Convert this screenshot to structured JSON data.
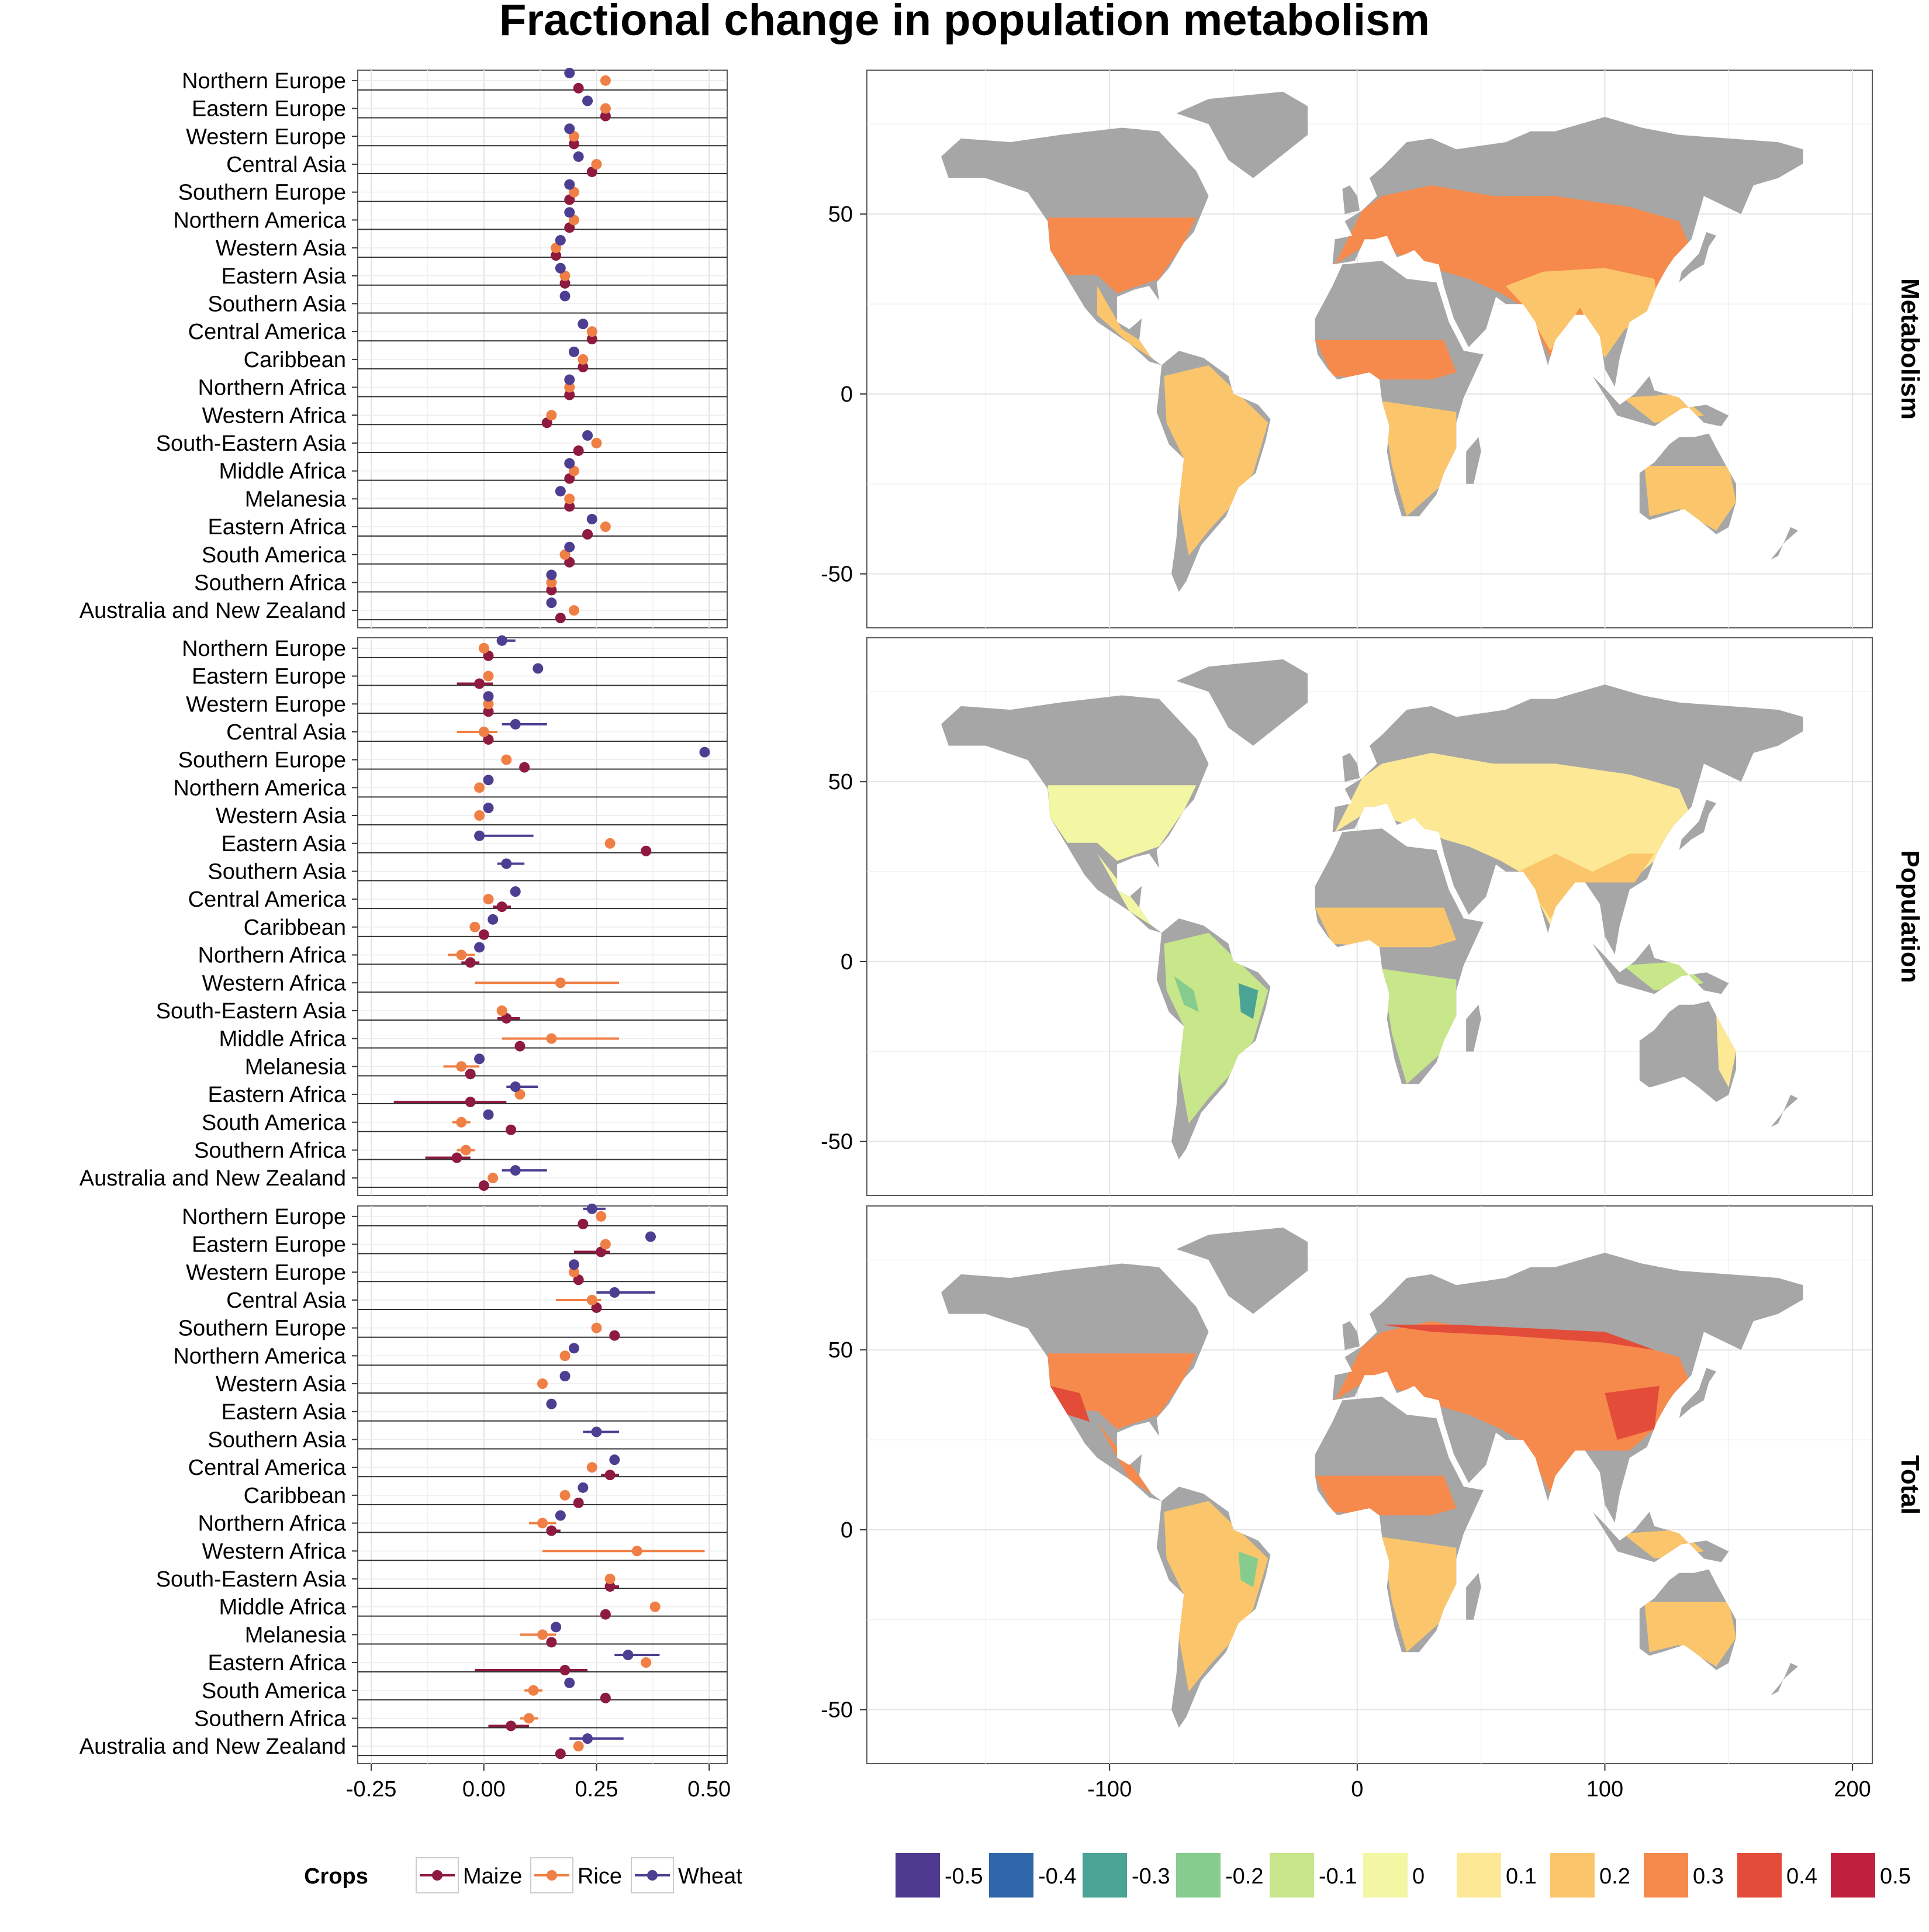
{
  "title": "Fractional change in population metabolism",
  "chart_data": [
    {
      "type": "scatter",
      "subtype": "dot-range",
      "facets": [
        "Metabolism",
        "Population",
        "Total"
      ],
      "regions": [
        "Northern Europe",
        "Eastern Europe",
        "Western Europe",
        "Central Asia",
        "Southern Europe",
        "Northern America",
        "Western Asia",
        "Eastern Asia",
        "Southern Asia",
        "Central America",
        "Caribbean",
        "Northern Africa",
        "Western Africa",
        "South-Eastern Asia",
        "Middle Africa",
        "Melanesia",
        "Eastern Africa",
        "South America",
        "Southern Africa",
        "Australia and New Zealand"
      ],
      "x_ticks": [
        "-0.25",
        "0.00",
        "0.25",
        "0.50"
      ],
      "x_tick_values": [
        -0.25,
        0,
        0.25,
        0.5
      ],
      "xlim": [
        -0.28,
        0.54
      ],
      "grid": true,
      "legend": {
        "title": "Crops",
        "position": "bottom",
        "entries": [
          "Maize",
          "Rice",
          "Wheat"
        ]
      },
      "series_colors": {
        "Maize": "#8e1a3f",
        "Rice": "#f07f45",
        "Wheat": "#4d3e92"
      },
      "note_values": "per facet and crop: one [point, low, high] per region, in region order; null = not shown",
      "metabolism": {
        "Maize": [
          [
            0.21,
            null,
            null
          ],
          [
            0.27,
            null,
            null
          ],
          [
            0.2,
            null,
            null
          ],
          [
            0.24,
            null,
            null
          ],
          [
            0.19,
            null,
            null
          ],
          [
            0.19,
            null,
            null
          ],
          [
            0.16,
            null,
            null
          ],
          [
            0.18,
            null,
            null
          ],
          [
            null,
            null,
            null
          ],
          [
            0.24,
            null,
            null
          ],
          [
            0.22,
            null,
            null
          ],
          [
            0.19,
            null,
            null
          ],
          [
            0.14,
            null,
            null
          ],
          [
            0.21,
            null,
            null
          ],
          [
            0.19,
            null,
            null
          ],
          [
            0.19,
            null,
            null
          ],
          [
            0.23,
            null,
            null
          ],
          [
            0.19,
            null,
            null
          ],
          [
            0.15,
            null,
            null
          ],
          [
            0.17,
            null,
            null
          ]
        ],
        "Rice": [
          [
            0.27,
            null,
            null
          ],
          [
            0.27,
            null,
            null
          ],
          [
            0.2,
            null,
            null
          ],
          [
            0.25,
            null,
            null
          ],
          [
            0.2,
            null,
            null
          ],
          [
            0.2,
            null,
            null
          ],
          [
            0.16,
            null,
            null
          ],
          [
            0.18,
            null,
            null
          ],
          [
            null,
            null,
            null
          ],
          [
            0.24,
            null,
            null
          ],
          [
            0.22,
            null,
            null
          ],
          [
            0.19,
            null,
            null
          ],
          [
            0.15,
            null,
            null
          ],
          [
            0.25,
            null,
            null
          ],
          [
            0.2,
            null,
            null
          ],
          [
            0.19,
            null,
            null
          ],
          [
            0.27,
            null,
            null
          ],
          [
            0.18,
            null,
            null
          ],
          [
            0.15,
            null,
            null
          ],
          [
            0.2,
            null,
            null
          ]
        ],
        "Wheat": [
          [
            0.19,
            null,
            null
          ],
          [
            0.23,
            null,
            null
          ],
          [
            0.19,
            null,
            null
          ],
          [
            0.21,
            null,
            null
          ],
          [
            0.19,
            null,
            null
          ],
          [
            0.19,
            null,
            null
          ],
          [
            0.17,
            null,
            null
          ],
          [
            0.17,
            null,
            null
          ],
          [
            0.18,
            null,
            null
          ],
          [
            0.22,
            null,
            null
          ],
          [
            0.2,
            null,
            null
          ],
          [
            0.19,
            null,
            null
          ],
          [
            null,
            null,
            null
          ],
          [
            0.23,
            null,
            null
          ],
          [
            0.19,
            null,
            null
          ],
          [
            0.17,
            null,
            null
          ],
          [
            0.24,
            null,
            null
          ],
          [
            0.19,
            null,
            null
          ],
          [
            0.15,
            null,
            null
          ],
          [
            0.15,
            null,
            null
          ]
        ]
      },
      "population": {
        "Maize": [
          [
            0.01,
            null,
            null
          ],
          [
            -0.01,
            -0.06,
            0.02
          ],
          [
            0.01,
            null,
            null
          ],
          [
            0.01,
            null,
            null
          ],
          [
            0.09,
            null,
            null
          ],
          [
            null,
            null,
            null
          ],
          [
            null,
            null,
            null
          ],
          [
            0.36,
            null,
            null
          ],
          [
            null,
            null,
            null
          ],
          [
            0.04,
            0.02,
            0.06
          ],
          [
            0.0,
            null,
            null
          ],
          [
            -0.03,
            -0.05,
            -0.01
          ],
          [
            null,
            null,
            null
          ],
          [
            0.05,
            0.03,
            0.08
          ],
          [
            0.08,
            null,
            null
          ],
          [
            -0.03,
            -0.04,
            -0.02
          ],
          [
            -0.03,
            -0.2,
            0.05
          ],
          [
            0.06,
            null,
            null
          ],
          [
            -0.06,
            -0.13,
            -0.03
          ],
          [
            0.0,
            null,
            null
          ]
        ],
        "Rice": [
          [
            0.0,
            null,
            null
          ],
          [
            0.01,
            null,
            null
          ],
          [
            0.01,
            null,
            null
          ],
          [
            0.0,
            -0.06,
            0.03
          ],
          [
            0.05,
            null,
            null
          ],
          [
            -0.01,
            null,
            null
          ],
          [
            -0.01,
            null,
            null
          ],
          [
            0.28,
            null,
            null
          ],
          [
            null,
            null,
            null
          ],
          [
            0.01,
            null,
            null
          ],
          [
            -0.02,
            null,
            null
          ],
          [
            -0.05,
            -0.08,
            -0.02
          ],
          [
            0.17,
            -0.02,
            0.3
          ],
          [
            0.04,
            null,
            null
          ],
          [
            0.15,
            0.04,
            0.3
          ],
          [
            -0.05,
            -0.09,
            -0.01
          ],
          [
            0.08,
            null,
            null
          ],
          [
            -0.05,
            -0.07,
            -0.03
          ],
          [
            -0.04,
            -0.06,
            -0.02
          ],
          [
            0.02,
            null,
            null
          ]
        ],
        "Wheat": [
          [
            0.04,
            0.03,
            0.07
          ],
          [
            0.12,
            null,
            null
          ],
          [
            0.01,
            null,
            null
          ],
          [
            0.07,
            0.04,
            0.14
          ],
          [
            0.49,
            null,
            null
          ],
          [
            0.01,
            null,
            null
          ],
          [
            0.01,
            null,
            null
          ],
          [
            -0.01,
            -0.02,
            0.11
          ],
          [
            0.05,
            0.03,
            0.09
          ],
          [
            0.07,
            null,
            null
          ],
          [
            0.02,
            null,
            null
          ],
          [
            -0.01,
            null,
            null
          ],
          [
            null,
            null,
            null
          ],
          [
            null,
            null,
            null
          ],
          [
            null,
            null,
            null
          ],
          [
            -0.01,
            null,
            null
          ],
          [
            0.07,
            0.05,
            0.12
          ],
          [
            0.01,
            null,
            null
          ],
          [
            null,
            null,
            null
          ],
          [
            0.07,
            0.04,
            0.14
          ]
        ]
      },
      "total": {
        "Maize": [
          [
            0.22,
            null,
            null
          ],
          [
            0.26,
            0.2,
            0.28
          ],
          [
            0.21,
            null,
            null
          ],
          [
            0.25,
            null,
            null
          ],
          [
            0.29,
            null,
            null
          ],
          [
            null,
            null,
            null
          ],
          [
            null,
            null,
            null
          ],
          [
            null,
            null,
            null
          ],
          [
            null,
            null,
            null
          ],
          [
            0.28,
            0.26,
            0.3
          ],
          [
            0.21,
            null,
            null
          ],
          [
            0.15,
            0.14,
            0.17
          ],
          [
            null,
            null,
            null
          ],
          [
            0.28,
            0.27,
            0.3
          ],
          [
            0.27,
            null,
            null
          ],
          [
            0.15,
            null,
            null
          ],
          [
            0.18,
            -0.02,
            0.23
          ],
          [
            0.27,
            null,
            null
          ],
          [
            0.06,
            0.01,
            0.1
          ],
          [
            0.17,
            null,
            null
          ]
        ],
        "Rice": [
          [
            0.26,
            null,
            null
          ],
          [
            0.27,
            null,
            null
          ],
          [
            0.2,
            null,
            null
          ],
          [
            0.24,
            0.16,
            0.26
          ],
          [
            0.25,
            null,
            null
          ],
          [
            0.18,
            null,
            null
          ],
          [
            0.13,
            null,
            null
          ],
          [
            null,
            null,
            null
          ],
          [
            null,
            null,
            null
          ],
          [
            0.24,
            null,
            null
          ],
          [
            0.18,
            null,
            null
          ],
          [
            0.13,
            0.1,
            0.16
          ],
          [
            0.34,
            0.13,
            0.49
          ],
          [
            0.28,
            null,
            null
          ],
          [
            0.38,
            null,
            null
          ],
          [
            0.13,
            0.08,
            0.16
          ],
          [
            0.36,
            null,
            null
          ],
          [
            0.11,
            0.09,
            0.13
          ],
          [
            0.1,
            0.08,
            0.12
          ],
          [
            0.21,
            null,
            null
          ]
        ],
        "Wheat": [
          [
            0.24,
            0.22,
            0.27
          ],
          [
            0.37,
            null,
            null
          ],
          [
            0.2,
            null,
            null
          ],
          [
            0.29,
            0.25,
            0.38
          ],
          [
            null,
            null,
            null
          ],
          [
            0.2,
            null,
            null
          ],
          [
            0.18,
            null,
            null
          ],
          [
            0.15,
            null,
            null
          ],
          [
            0.25,
            0.22,
            0.3
          ],
          [
            0.29,
            null,
            null
          ],
          [
            0.22,
            null,
            null
          ],
          [
            0.17,
            null,
            null
          ],
          [
            null,
            null,
            null
          ],
          [
            null,
            null,
            null
          ],
          [
            null,
            null,
            null
          ],
          [
            0.16,
            null,
            null
          ],
          [
            0.32,
            0.29,
            0.39
          ],
          [
            0.19,
            null,
            null
          ],
          [
            null,
            null,
            null
          ],
          [
            0.23,
            0.19,
            0.31
          ]
        ]
      }
    },
    {
      "type": "heatmap",
      "subtype": "map",
      "facets": [
        "Metabolism",
        "Population",
        "Total"
      ],
      "x_ticks": [
        "-100",
        "0",
        "100",
        "200"
      ],
      "x_tick_values": [
        -100,
        0,
        100,
        200
      ],
      "y_ticks": [
        "50",
        "0",
        "-50"
      ],
      "y_tick_values": [
        50,
        0,
        -50
      ],
      "xlim": [
        -198,
        208
      ],
      "ylim": [
        -65,
        90
      ],
      "grid": true,
      "land_color": "#a6a6a6",
      "legend": {
        "position": "bottom",
        "values": [
          "-0.5",
          "-0.4",
          "-0.3",
          "-0.2",
          "-0.1",
          "0",
          "0.1",
          "0.2",
          "0.3",
          "0.4",
          "0.5"
        ],
        "colors": [
          "#4e3a8e",
          "#3067ab",
          "#4aa394",
          "#86cc8e",
          "#c8e68a",
          "#f3f6a2",
          "#fde896",
          "#fbc66b",
          "#f58a4c",
          "#e34c38",
          "#c0203e"
        ]
      }
    }
  ]
}
